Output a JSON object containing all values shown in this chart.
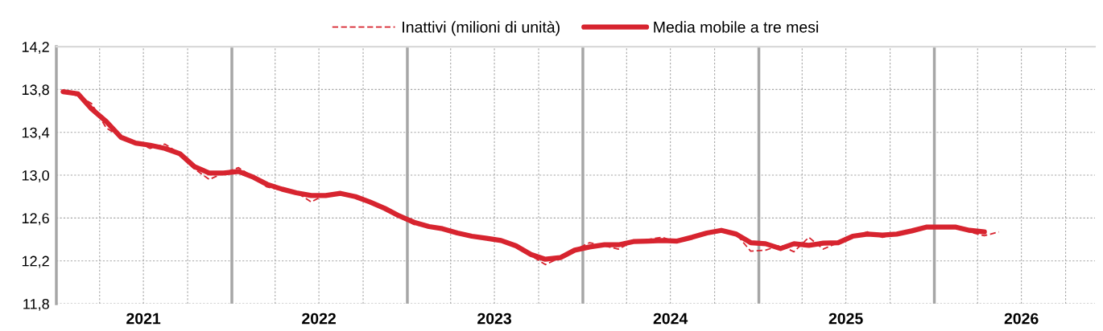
{
  "chart_data": {
    "type": "line",
    "x": [
      "2021-01-15",
      "2021-02-15",
      "2021-03-15",
      "2021-04-15",
      "2021-05-15",
      "2021-06-15",
      "2021-07-15",
      "2021-08-15",
      "2021-09-15",
      "2021-10-15",
      "2021-11-15",
      "2021-12-15",
      "2022-01-15",
      "2022-02-15",
      "2022-03-15",
      "2022-04-15",
      "2022-05-15",
      "2022-06-15",
      "2022-07-15",
      "2022-08-15",
      "2022-09-15",
      "2022-10-15",
      "2022-11-15",
      "2022-12-15",
      "2023-01-15",
      "2023-02-15",
      "2023-03-15",
      "2023-04-15",
      "2023-05-15",
      "2023-06-15",
      "2023-07-15",
      "2023-08-15",
      "2023-09-15",
      "2023-10-15",
      "2023-11-15",
      "2023-12-15",
      "2024-01-15",
      "2024-02-15",
      "2024-03-15",
      "2024-04-15",
      "2024-05-15",
      "2024-06-15",
      "2024-07-15",
      "2024-08-15",
      "2024-09-15",
      "2024-10-15",
      "2024-11-15",
      "2024-12-15",
      "2025-01-15",
      "2025-02-15",
      "2025-03-15",
      "2025-04-15",
      "2025-05-15",
      "2025-06-15",
      "2025-07-15",
      "2025-08-15",
      "2025-09-15",
      "2025-10-15",
      "2025-11-15",
      "2025-12-15",
      "2026-01-15",
      "2026-02-15",
      "2026-03-15",
      "2026-04-15",
      "2026-05-15"
    ],
    "series": [
      {
        "name": "Inattivi (milioni di unità)",
        "color": "#d7242f",
        "line_style": "dashed",
        "values": [
          13.78,
          13.74,
          13.67,
          13.44,
          13.36,
          13.31,
          13.25,
          13.29,
          13.2,
          13.06,
          12.96,
          13.02,
          13.07,
          12.98,
          12.89,
          12.86,
          12.84,
          12.75,
          12.82,
          12.84,
          12.79,
          12.75,
          12.69,
          12.61,
          12.54,
          12.52,
          12.5,
          12.46,
          12.43,
          12.41,
          12.39,
          12.34,
          12.25,
          12.165,
          12.23,
          12.3,
          12.37,
          12.34,
          12.31,
          12.38,
          12.4,
          12.42,
          12.37,
          12.43,
          12.46,
          12.49,
          12.45,
          12.29,
          12.3,
          12.345,
          12.285,
          12.42,
          12.31,
          12.37,
          12.43,
          12.47,
          12.42,
          12.45,
          12.48,
          12.515,
          12.515,
          12.52,
          12.47,
          12.435,
          12.47
        ]
      },
      {
        "name": "Media mobile a tre mesi",
        "color": "#d7242f",
        "line_style": "solid",
        "values": [
          13.78,
          13.76,
          13.62,
          13.5,
          13.355,
          13.3,
          13.28,
          13.25,
          13.2,
          13.08,
          13.02,
          13.02,
          13.035,
          12.98,
          12.915,
          12.87,
          12.835,
          12.81,
          12.81,
          12.83,
          12.8,
          12.75,
          12.69,
          12.62,
          12.56,
          12.52,
          12.5,
          12.46,
          12.43,
          12.41,
          12.39,
          12.34,
          12.26,
          12.215,
          12.23,
          12.3,
          12.33,
          12.35,
          12.35,
          12.38,
          12.385,
          12.39,
          12.385,
          12.42,
          12.46,
          12.485,
          12.45,
          12.37,
          12.36,
          12.315,
          12.36,
          12.345,
          12.365,
          12.37,
          12.43,
          12.45,
          12.44,
          12.45,
          12.48,
          12.515,
          12.515,
          12.515,
          12.485,
          12.47,
          null
        ]
      }
    ],
    "xlim": [
      "2021-01-01",
      "2026-12-01"
    ],
    "xticks": [
      {
        "value": "2021-04-01",
        "label": null
      },
      {
        "value": "2021-07-01",
        "label": "2021"
      },
      {
        "value": "2021-10-01",
        "label": null
      },
      {
        "value": "2022-04-01",
        "label": null
      },
      {
        "value": "2022-07-01",
        "label": "2022"
      },
      {
        "value": "2022-10-01",
        "label": null
      },
      {
        "value": "2023-04-01",
        "label": null
      },
      {
        "value": "2023-07-01",
        "label": "2023"
      },
      {
        "value": "2023-10-01",
        "label": null
      },
      {
        "value": "2024-04-01",
        "label": null
      },
      {
        "value": "2024-07-01",
        "label": "2024"
      },
      {
        "value": "2024-10-01",
        "label": null
      },
      {
        "value": "2025-04-01",
        "label": null
      },
      {
        "value": "2025-07-01",
        "label": "2025"
      },
      {
        "value": "2025-10-01",
        "label": null
      },
      {
        "value": "2026-04-01",
        "label": null
      },
      {
        "value": "2026-07-01",
        "label": "2026"
      },
      {
        "value": "2026-10-01",
        "label": null
      }
    ],
    "ylim": [
      11.8,
      14.2
    ],
    "yticks": [
      {
        "value": 11.8,
        "label": "11,8"
      },
      {
        "value": 12.2,
        "label": "12,2"
      },
      {
        "value": 12.6,
        "label": "12,6"
      },
      {
        "value": 13.0,
        "label": "13,0"
      },
      {
        "value": 13.4,
        "label": "13,4"
      },
      {
        "value": 13.8,
        "label": "13,8"
      },
      {
        "value": 14.2,
        "label": "14,2"
      }
    ],
    "ref_lines": [
      {
        "axis": "x",
        "value": "2022-01-01",
        "color": "#a6a6a6"
      },
      {
        "axis": "x",
        "value": "2023-01-01",
        "color": "#a6a6a6"
      },
      {
        "axis": "x",
        "value": "2024-01-01",
        "color": "#a6a6a6"
      },
      {
        "axis": "x",
        "value": "2025-01-01",
        "color": "#a6a6a6"
      },
      {
        "axis": "x",
        "value": "2026-01-01",
        "color": "#a6a6a6"
      }
    ],
    "grid": true,
    "legend": "top",
    "marker": "none"
  }
}
